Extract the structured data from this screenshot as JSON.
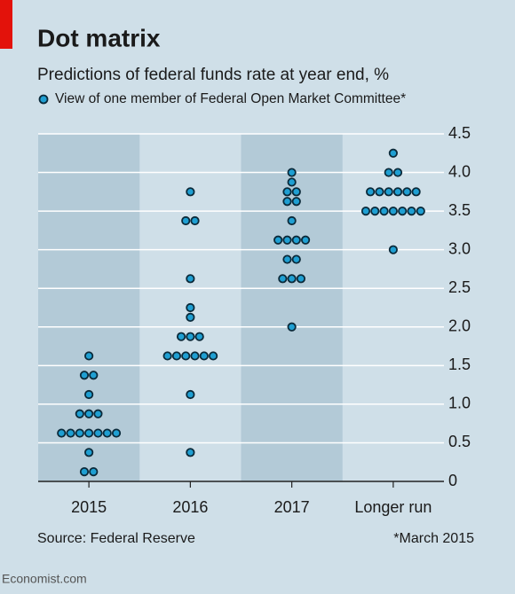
{
  "chart_data": {
    "type": "dot",
    "title": "Dot matrix",
    "subtitle": "Predictions of federal funds rate at year end, %",
    "legend": "View of one member of Federal Open Market Committee*",
    "categories": [
      "2015",
      "2016",
      "2017",
      "Longer run"
    ],
    "values": [
      [
        0.125,
        0.125,
        0.375,
        0.625,
        0.625,
        0.625,
        0.625,
        0.625,
        0.625,
        0.625,
        0.875,
        0.875,
        0.875,
        1.125,
        1.375,
        1.375,
        1.625
      ],
      [
        0.375,
        1.125,
        1.625,
        1.625,
        1.625,
        1.625,
        1.625,
        1.625,
        1.875,
        1.875,
        1.875,
        2.125,
        2.25,
        2.625,
        3.375,
        3.375,
        3.75
      ],
      [
        2.0,
        2.625,
        2.625,
        2.625,
        2.875,
        2.875,
        3.125,
        3.125,
        3.125,
        3.125,
        3.375,
        3.625,
        3.625,
        3.75,
        3.75,
        3.875,
        4.0
      ],
      [
        3.0,
        3.5,
        3.5,
        3.5,
        3.5,
        3.5,
        3.5,
        3.5,
        3.75,
        3.75,
        3.75,
        3.75,
        3.75,
        3.75,
        4.0,
        4.0,
        4.25
      ]
    ],
    "color": "#1f9fd2",
    "ylim": [
      0,
      4.5
    ],
    "yticks": [
      0,
      0.5,
      {
        "value": 1,
        "label": "1.0"
      },
      1.5,
      {
        "value": 2,
        "label": "2.0"
      },
      2.5,
      {
        "value": 3,
        "label": "3.0"
      },
      3.5,
      {
        "value": 4,
        "label": "4.0"
      },
      4.5
    ],
    "grid": true,
    "source": "Source: Federal Reserve",
    "footnote": "*March 2015",
    "brand": "Economist.com"
  }
}
